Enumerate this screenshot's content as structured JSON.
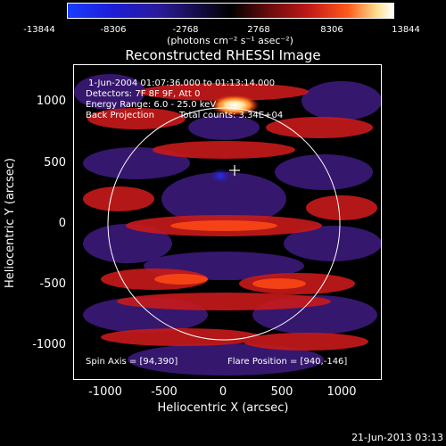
{
  "colorbar": {
    "ticks": [
      "-13844",
      "-8306",
      "-2768",
      "2768",
      "8306",
      "13844"
    ],
    "unit_label": "(photons cm⁻² s⁻¹ asec⁻²)"
  },
  "title": "Reconstructed RHESSI Image",
  "info": {
    "time_range": "1-Jun-2004 01:07:36.000 to 01:13:14.000",
    "detectors": "Detectors: 7F 8F 9F, Att 0",
    "energy_range": "Energy Range: 6.0 - 25.0 keV",
    "method": "Back Projection",
    "total_counts": "Total counts: 3.34E+04",
    "spin_axis": "Spin Axis = [94,390]",
    "flare_position": "Flare Position = [940,-146]"
  },
  "axes": {
    "xlabel": "Heliocentric X (arcsec)",
    "ylabel": "Heliocentric Y (arcsec)",
    "xticks": [
      "-1000",
      "-500",
      "0",
      "500",
      "1000"
    ],
    "yticks": [
      "1000",
      "500",
      "0",
      "-500",
      "-1000"
    ],
    "xlim": [
      -1300,
      1300
    ],
    "ylim": [
      -1300,
      1300
    ]
  },
  "solar_limb_radius_arcsec": 945,
  "spin_axis_marker": [
    94,
    390
  ],
  "footer_timestamp": "21-Jun-2013 03:13"
}
